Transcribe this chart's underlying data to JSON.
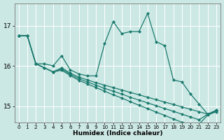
{
  "xlabel": "Humidex (Indice chaleur)",
  "xlim": [
    -0.5,
    23.5
  ],
  "ylim": [
    14.6,
    17.55
  ],
  "yticks": [
    15,
    16,
    17
  ],
  "xticks": [
    0,
    1,
    2,
    3,
    4,
    5,
    6,
    7,
    8,
    9,
    10,
    11,
    12,
    13,
    14,
    15,
    16,
    17,
    18,
    19,
    20,
    21,
    22,
    23
  ],
  "bg_color": "#cce8e4",
  "grid_color": "#ffffff",
  "line_color": "#1a7a6e",
  "lines": [
    [
      16.75,
      16.75,
      16.05,
      16.05,
      16.0,
      16.25,
      15.9,
      15.8,
      15.75,
      15.75,
      16.55,
      17.1,
      16.8,
      16.85,
      16.85,
      17.3,
      16.6,
      16.5,
      15.65,
      15.6,
      15.3,
      15.05,
      14.8,
      14.9
    ],
    [
      16.75,
      16.75,
      16.05,
      15.95,
      15.85,
      15.95,
      15.82,
      15.72,
      15.65,
      15.58,
      15.52,
      15.46,
      15.4,
      15.34,
      15.28,
      15.22,
      15.16,
      15.1,
      15.04,
      14.98,
      14.92,
      14.86,
      14.8,
      14.88
    ],
    [
      16.75,
      16.75,
      16.05,
      15.95,
      15.85,
      15.92,
      15.79,
      15.68,
      15.6,
      15.52,
      15.44,
      15.37,
      15.3,
      15.22,
      15.15,
      15.08,
      15.01,
      14.94,
      14.87,
      14.8,
      14.73,
      14.66,
      14.8,
      14.88
    ],
    [
      16.75,
      16.75,
      16.05,
      15.95,
      15.85,
      15.89,
      15.76,
      15.64,
      15.55,
      15.46,
      15.37,
      15.28,
      15.2,
      15.11,
      15.02,
      14.94,
      14.85,
      14.77,
      14.68,
      14.6,
      14.55,
      14.55,
      14.78,
      14.86
    ]
  ]
}
